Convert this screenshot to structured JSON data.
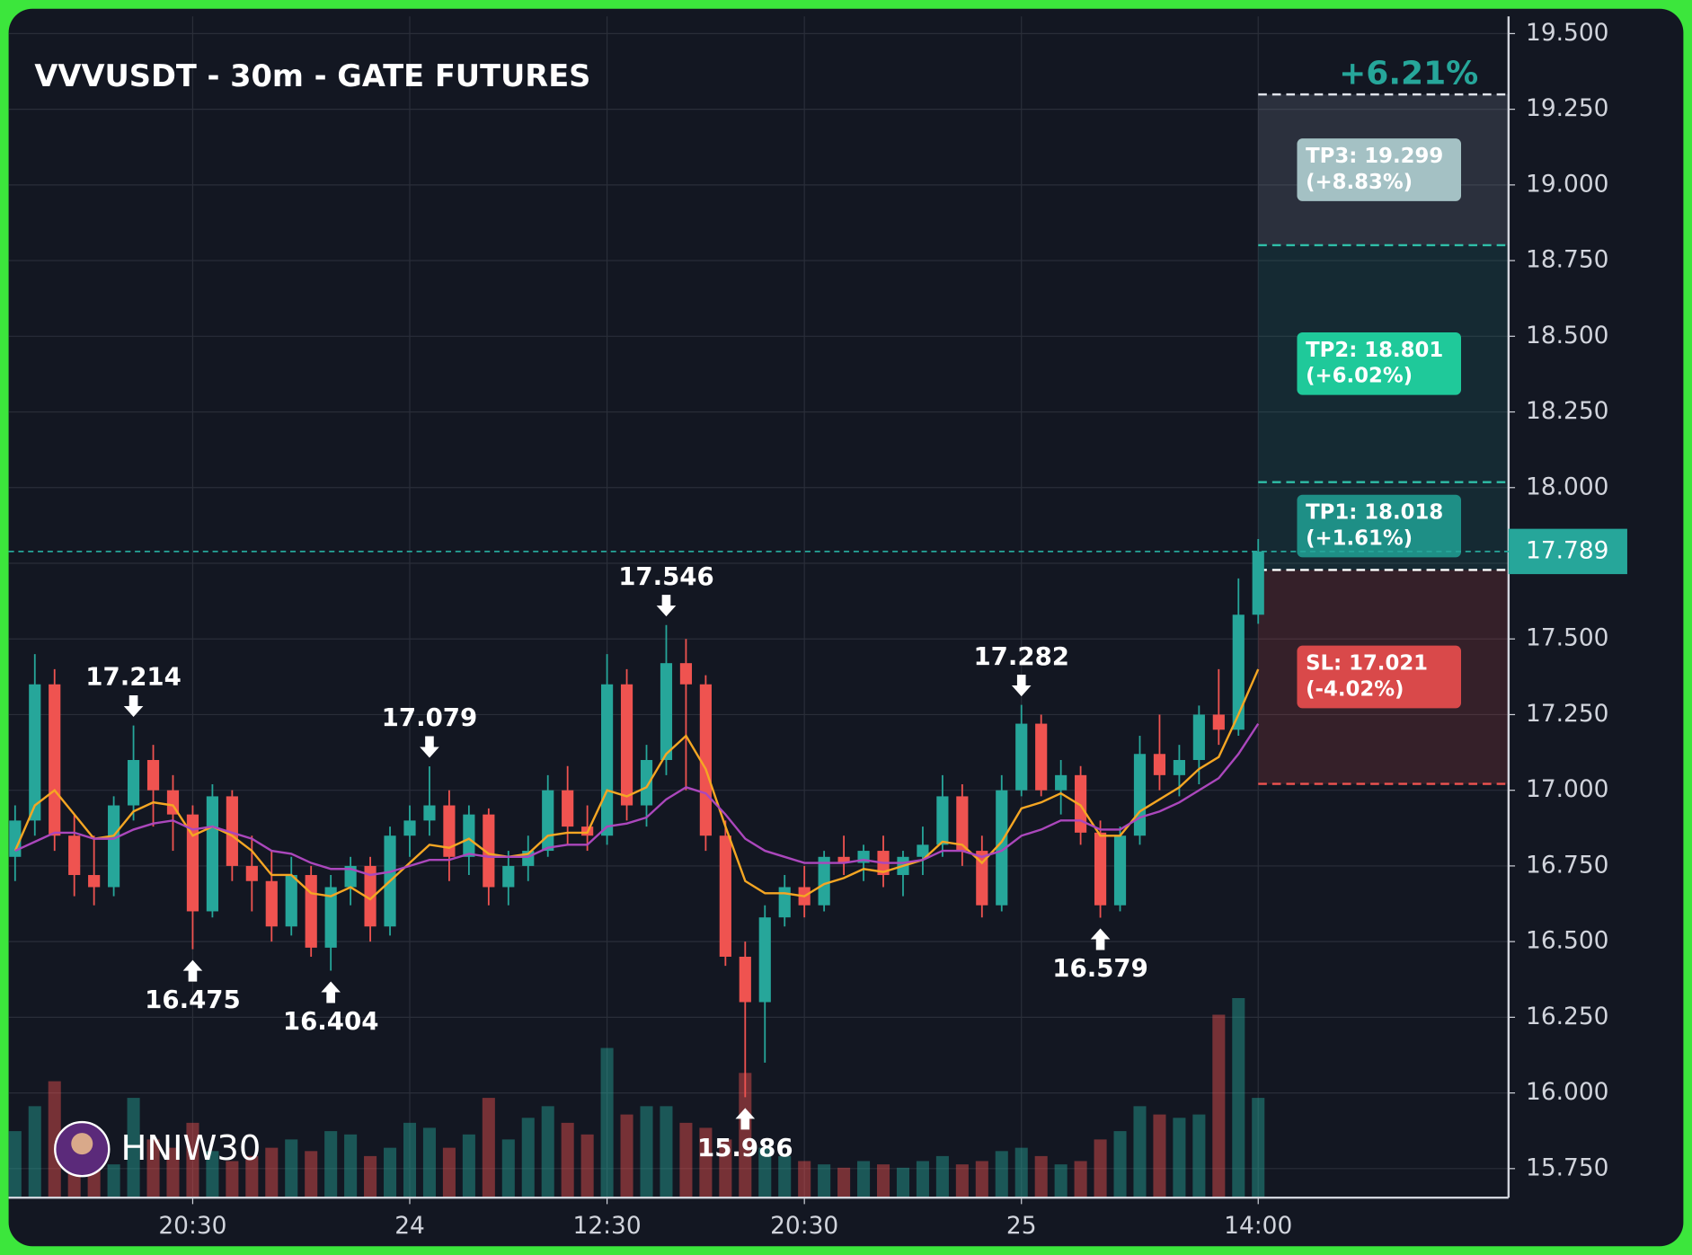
{
  "chart_data": {
    "type": "candlestick",
    "title": "VVVUSDT - 30m - GATE FUTURES",
    "watermark": "HNIW30",
    "categories": [
      null,
      null,
      null,
      null,
      null,
      null,
      null,
      null,
      null,
      "20:30",
      null,
      null,
      null,
      null,
      null,
      null,
      null,
      null,
      null,
      null,
      "24",
      null,
      null,
      null,
      null,
      null,
      null,
      null,
      null,
      null,
      "12:30",
      null,
      null,
      null,
      null,
      null,
      null,
      null,
      null,
      null,
      "20:30",
      null,
      null,
      null,
      null,
      null,
      null,
      null,
      null,
      null,
      null,
      "25",
      null,
      null,
      null,
      null,
      null,
      null,
      null,
      null,
      null,
      null,
      null,
      "14:00"
    ],
    "candles": [
      [
        16.78,
        16.95,
        16.7,
        16.9
      ],
      [
        16.9,
        17.45,
        16.85,
        17.35
      ],
      [
        17.35,
        17.4,
        16.8,
        16.85
      ],
      [
        16.85,
        16.92,
        16.65,
        16.72
      ],
      [
        16.72,
        16.85,
        16.62,
        16.68
      ],
      [
        16.68,
        16.98,
        16.65,
        16.95
      ],
      [
        16.95,
        17.214,
        16.9,
        17.1
      ],
      [
        17.1,
        17.15,
        16.88,
        17.0
      ],
      [
        17.0,
        17.05,
        16.8,
        16.92
      ],
      [
        16.92,
        16.95,
        16.475,
        16.6
      ],
      [
        16.6,
        17.02,
        16.58,
        16.98
      ],
      [
        16.98,
        17.0,
        16.7,
        16.75
      ],
      [
        16.75,
        16.85,
        16.6,
        16.7
      ],
      [
        16.7,
        16.8,
        16.5,
        16.55
      ],
      [
        16.55,
        16.78,
        16.52,
        16.72
      ],
      [
        16.72,
        16.75,
        16.45,
        16.48
      ],
      [
        16.48,
        16.72,
        16.404,
        16.68
      ],
      [
        16.68,
        16.78,
        16.62,
        16.75
      ],
      [
        16.75,
        16.78,
        16.5,
        16.55
      ],
      [
        16.55,
        16.88,
        16.52,
        16.85
      ],
      [
        16.85,
        16.95,
        16.78,
        16.9
      ],
      [
        16.9,
        17.079,
        16.85,
        16.95
      ],
      [
        16.95,
        17.0,
        16.7,
        16.78
      ],
      [
        16.78,
        16.95,
        16.72,
        16.92
      ],
      [
        16.92,
        16.94,
        16.62,
        16.68
      ],
      [
        16.68,
        16.8,
        16.62,
        16.75
      ],
      [
        16.75,
        16.85,
        16.7,
        16.8
      ],
      [
        16.8,
        17.05,
        16.78,
        17.0
      ],
      [
        17.0,
        17.08,
        16.82,
        16.88
      ],
      [
        16.88,
        16.95,
        16.8,
        16.85
      ],
      [
        16.85,
        17.45,
        16.82,
        17.35
      ],
      [
        17.35,
        17.4,
        16.9,
        16.95
      ],
      [
        16.95,
        17.15,
        16.88,
        17.1
      ],
      [
        17.1,
        17.546,
        17.05,
        17.42
      ],
      [
        17.42,
        17.5,
        17.0,
        17.35
      ],
      [
        17.35,
        17.38,
        16.8,
        16.85
      ],
      [
        16.85,
        16.9,
        16.42,
        16.45
      ],
      [
        16.45,
        16.5,
        15.986,
        16.3
      ],
      [
        16.3,
        16.62,
        16.1,
        16.58
      ],
      [
        16.58,
        16.72,
        16.55,
        16.68
      ],
      [
        16.68,
        16.75,
        16.58,
        16.62
      ],
      [
        16.62,
        16.8,
        16.6,
        16.78
      ],
      [
        16.78,
        16.85,
        16.72,
        16.76
      ],
      [
        16.76,
        16.82,
        16.7,
        16.8
      ],
      [
        16.8,
        16.85,
        16.68,
        16.72
      ],
      [
        16.72,
        16.8,
        16.65,
        16.78
      ],
      [
        16.78,
        16.88,
        16.72,
        16.82
      ],
      [
        16.82,
        17.05,
        16.78,
        16.98
      ],
      [
        16.98,
        17.02,
        16.75,
        16.8
      ],
      [
        16.8,
        16.85,
        16.58,
        16.62
      ],
      [
        16.62,
        17.05,
        16.6,
        17.0
      ],
      [
        17.0,
        17.282,
        16.98,
        17.22
      ],
      [
        17.22,
        17.25,
        16.98,
        17.0
      ],
      [
        17.0,
        17.1,
        16.92,
        17.05
      ],
      [
        17.05,
        17.08,
        16.82,
        16.86
      ],
      [
        16.86,
        16.9,
        16.579,
        16.62
      ],
      [
        16.62,
        16.88,
        16.6,
        16.85
      ],
      [
        16.85,
        17.18,
        16.82,
        17.12
      ],
      [
        17.12,
        17.25,
        17.0,
        17.05
      ],
      [
        17.05,
        17.15,
        16.98,
        17.1
      ],
      [
        17.1,
        17.28,
        17.02,
        17.25
      ],
      [
        17.25,
        17.4,
        17.15,
        17.2
      ],
      [
        17.2,
        17.7,
        17.18,
        17.58
      ],
      [
        17.58,
        17.83,
        17.55,
        17.789
      ]
    ],
    "volume": [
      40,
      55,
      70,
      30,
      25,
      20,
      60,
      35,
      30,
      45,
      28,
      22,
      25,
      30,
      35,
      28,
      40,
      38,
      25,
      30,
      45,
      42,
      30,
      38,
      60,
      35,
      48,
      55,
      45,
      38,
      90,
      50,
      55,
      55,
      45,
      42,
      35,
      75,
      30,
      25,
      22,
      20,
      18,
      22,
      20,
      18,
      22,
      25,
      20,
      22,
      28,
      30,
      25,
      20,
      22,
      35,
      40,
      55,
      50,
      48,
      50,
      110,
      120,
      60
    ],
    "ma_lines": [
      {
        "color": "#f5a623",
        "values": [
          16.8,
          16.95,
          17.0,
          16.92,
          16.84,
          16.85,
          16.93,
          16.96,
          16.95,
          16.85,
          16.88,
          16.85,
          16.8,
          16.72,
          16.72,
          16.66,
          16.65,
          16.68,
          16.64,
          16.7,
          16.76,
          16.82,
          16.81,
          16.84,
          16.79,
          16.78,
          16.79,
          16.85,
          16.86,
          16.86,
          17.0,
          16.98,
          17.01,
          17.12,
          17.18,
          17.07,
          16.88,
          16.7,
          16.66,
          16.66,
          16.65,
          16.69,
          16.71,
          16.74,
          16.73,
          16.75,
          16.77,
          16.83,
          16.82,
          16.76,
          16.83,
          16.94,
          16.96,
          16.99,
          16.95,
          16.85,
          16.85,
          16.93,
          16.97,
          17.01,
          17.07,
          17.11,
          17.25,
          17.4
        ]
      },
      {
        "color": "#ab47bc",
        "values": [
          16.8,
          16.83,
          16.86,
          16.86,
          16.84,
          16.84,
          16.87,
          16.89,
          16.9,
          16.87,
          16.88,
          16.86,
          16.84,
          16.8,
          16.79,
          16.76,
          16.74,
          16.74,
          16.72,
          16.73,
          16.75,
          16.77,
          16.77,
          16.79,
          16.78,
          16.78,
          16.78,
          16.81,
          16.82,
          16.82,
          16.88,
          16.89,
          16.91,
          16.97,
          17.01,
          16.99,
          16.92,
          16.84,
          16.8,
          16.78,
          16.76,
          16.76,
          16.76,
          16.77,
          16.76,
          16.76,
          16.77,
          16.8,
          16.8,
          16.78,
          16.8,
          16.85,
          16.87,
          16.9,
          16.9,
          16.87,
          16.87,
          16.91,
          16.93,
          16.96,
          17.0,
          17.04,
          17.12,
          17.22
        ]
      }
    ],
    "high_labels": [
      17.214,
      17.079,
      17.546,
      17.282
    ],
    "low_labels": [
      16.475,
      16.404,
      15.986,
      16.579
    ],
    "last_price": 17.789,
    "entry": 17.728,
    "targets": [
      {
        "label": "TP1: 18.018",
        "change": "(+1.61%)",
        "value": 18.018,
        "color": "#1e8f86"
      },
      {
        "label": "TP2: 18.801",
        "change": "(+6.02%)",
        "value": 18.801,
        "color": "#1fc99a"
      },
      {
        "label": "TP3: 19.299",
        "change": "(+8.83%)",
        "value": 19.299,
        "color": "#a4c1c4"
      }
    ],
    "stop": {
      "label": "SL: 17.021",
      "change": "(-4.02%)",
      "value": 17.021,
      "color": "#d9494a"
    },
    "pnl_label": "+6.21%",
    "up_color": "#26a69a",
    "down_color": "#ef5350",
    "ylim": [
      15.654,
      19.557
    ],
    "yticks": [
      {
        "value": 15.75,
        "label": "15.750"
      },
      {
        "value": 16,
        "label": "16.000"
      },
      {
        "value": 16.25,
        "label": "16.250"
      },
      {
        "value": 16.5,
        "label": "16.500"
      },
      {
        "value": 16.75,
        "label": "16.750"
      },
      {
        "value": 17,
        "label": "17.000"
      },
      {
        "value": 17.25,
        "label": "17.250"
      },
      {
        "value": 17.5,
        "label": "17.500"
      },
      {
        "value": 17.75,
        "label": "17.750"
      },
      {
        "value": 18,
        "label": "18.000"
      },
      {
        "value": 18.25,
        "label": "18.250"
      },
      {
        "value": 18.5,
        "label": "18.500"
      },
      {
        "value": 18.75,
        "label": "18.750"
      },
      {
        "value": 19,
        "label": "19.000"
      },
      {
        "value": 19.25,
        "label": "19.250"
      },
      {
        "value": 19.5,
        "label": "19.500"
      }
    ],
    "grid": true
  }
}
